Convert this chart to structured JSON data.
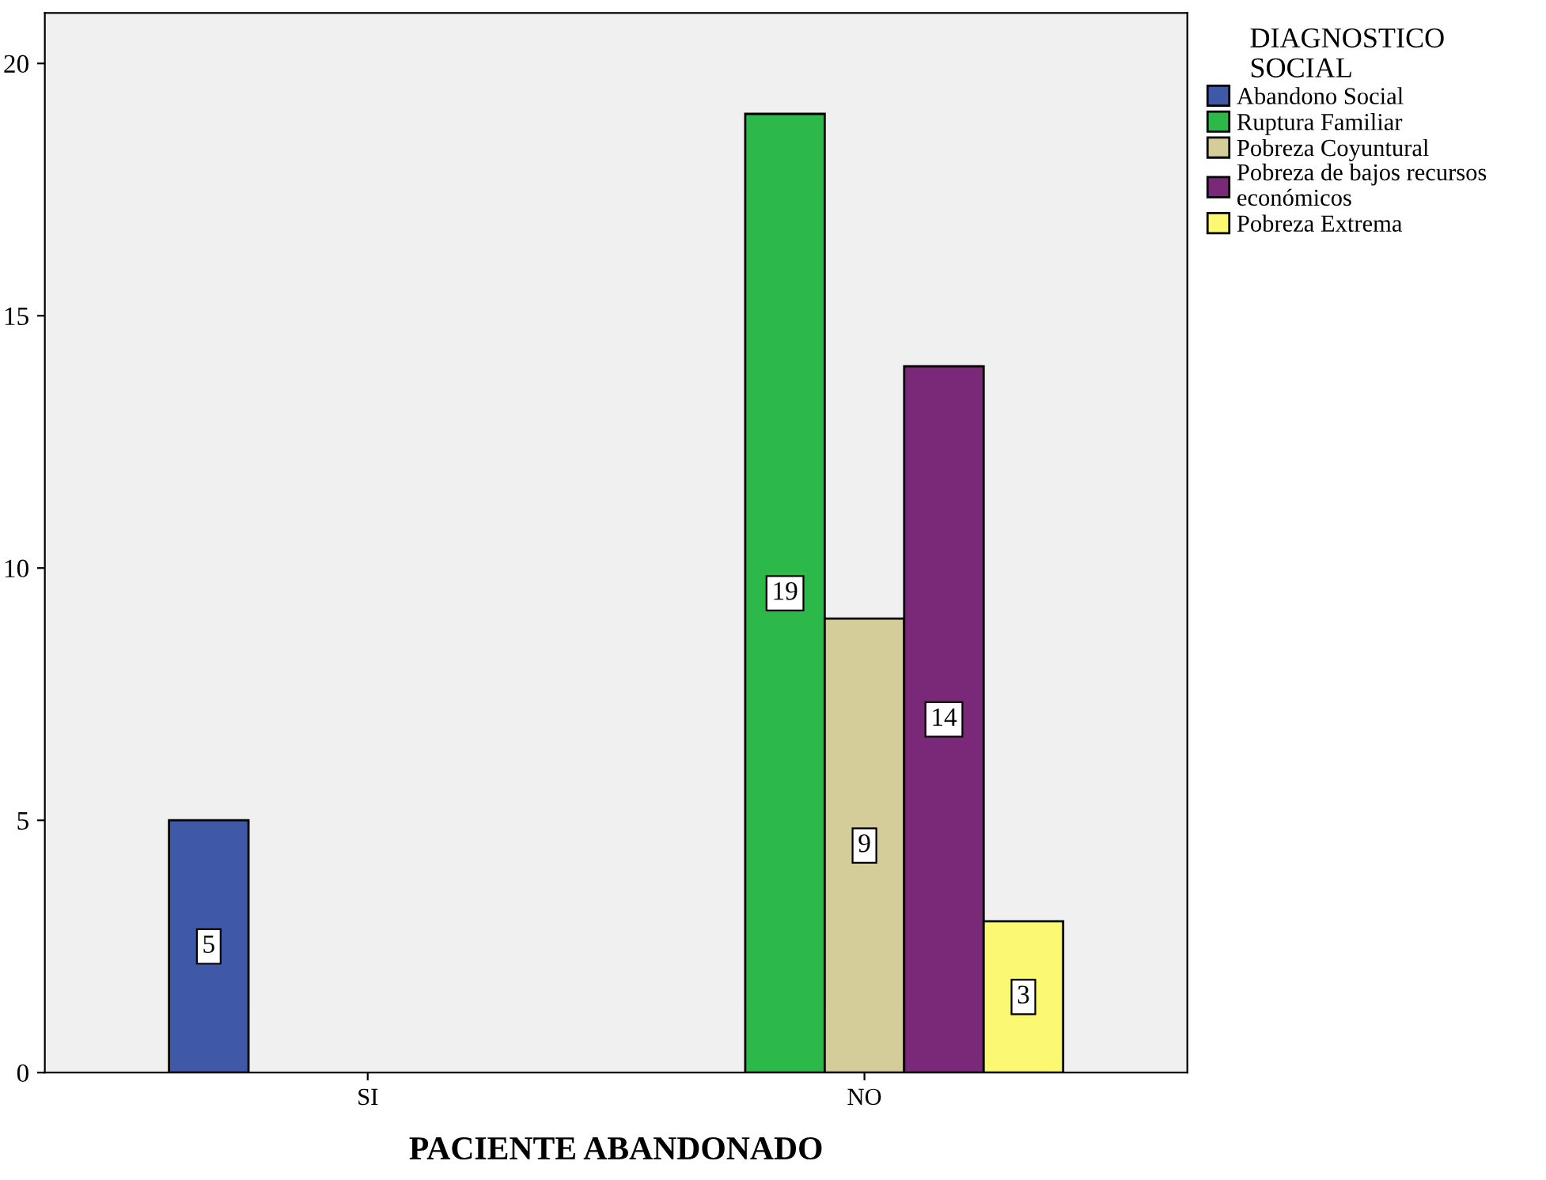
{
  "chart_data": {
    "type": "bar",
    "xlabel": "PACIENTE ABANDONADO",
    "legend_title": "DIAGNOSTICO\nSOCIAL",
    "categories": [
      "SI",
      "NO"
    ],
    "series": [
      {
        "name": "Abandono Social",
        "color": "#3f59a8",
        "values": [
          5,
          null
        ]
      },
      {
        "name": "Ruptura Familiar",
        "color": "#2db84a",
        "values": [
          null,
          19
        ]
      },
      {
        "name": "Pobreza Coyuntural",
        "color": "#d4cc99",
        "values": [
          null,
          9
        ]
      },
      {
        "name": "Pobreza de bajos recursos\neconómicos",
        "color": "#7a2878",
        "values": [
          null,
          14
        ]
      },
      {
        "name": "Pobreza Extrema",
        "color": "#fbf872",
        "values": [
          null,
          3
        ]
      }
    ],
    "ylim": [
      0,
      21
    ],
    "yticks": [
      0,
      5,
      10,
      15,
      20
    ],
    "grid": false,
    "legend": "right",
    "data_labels": true
  }
}
